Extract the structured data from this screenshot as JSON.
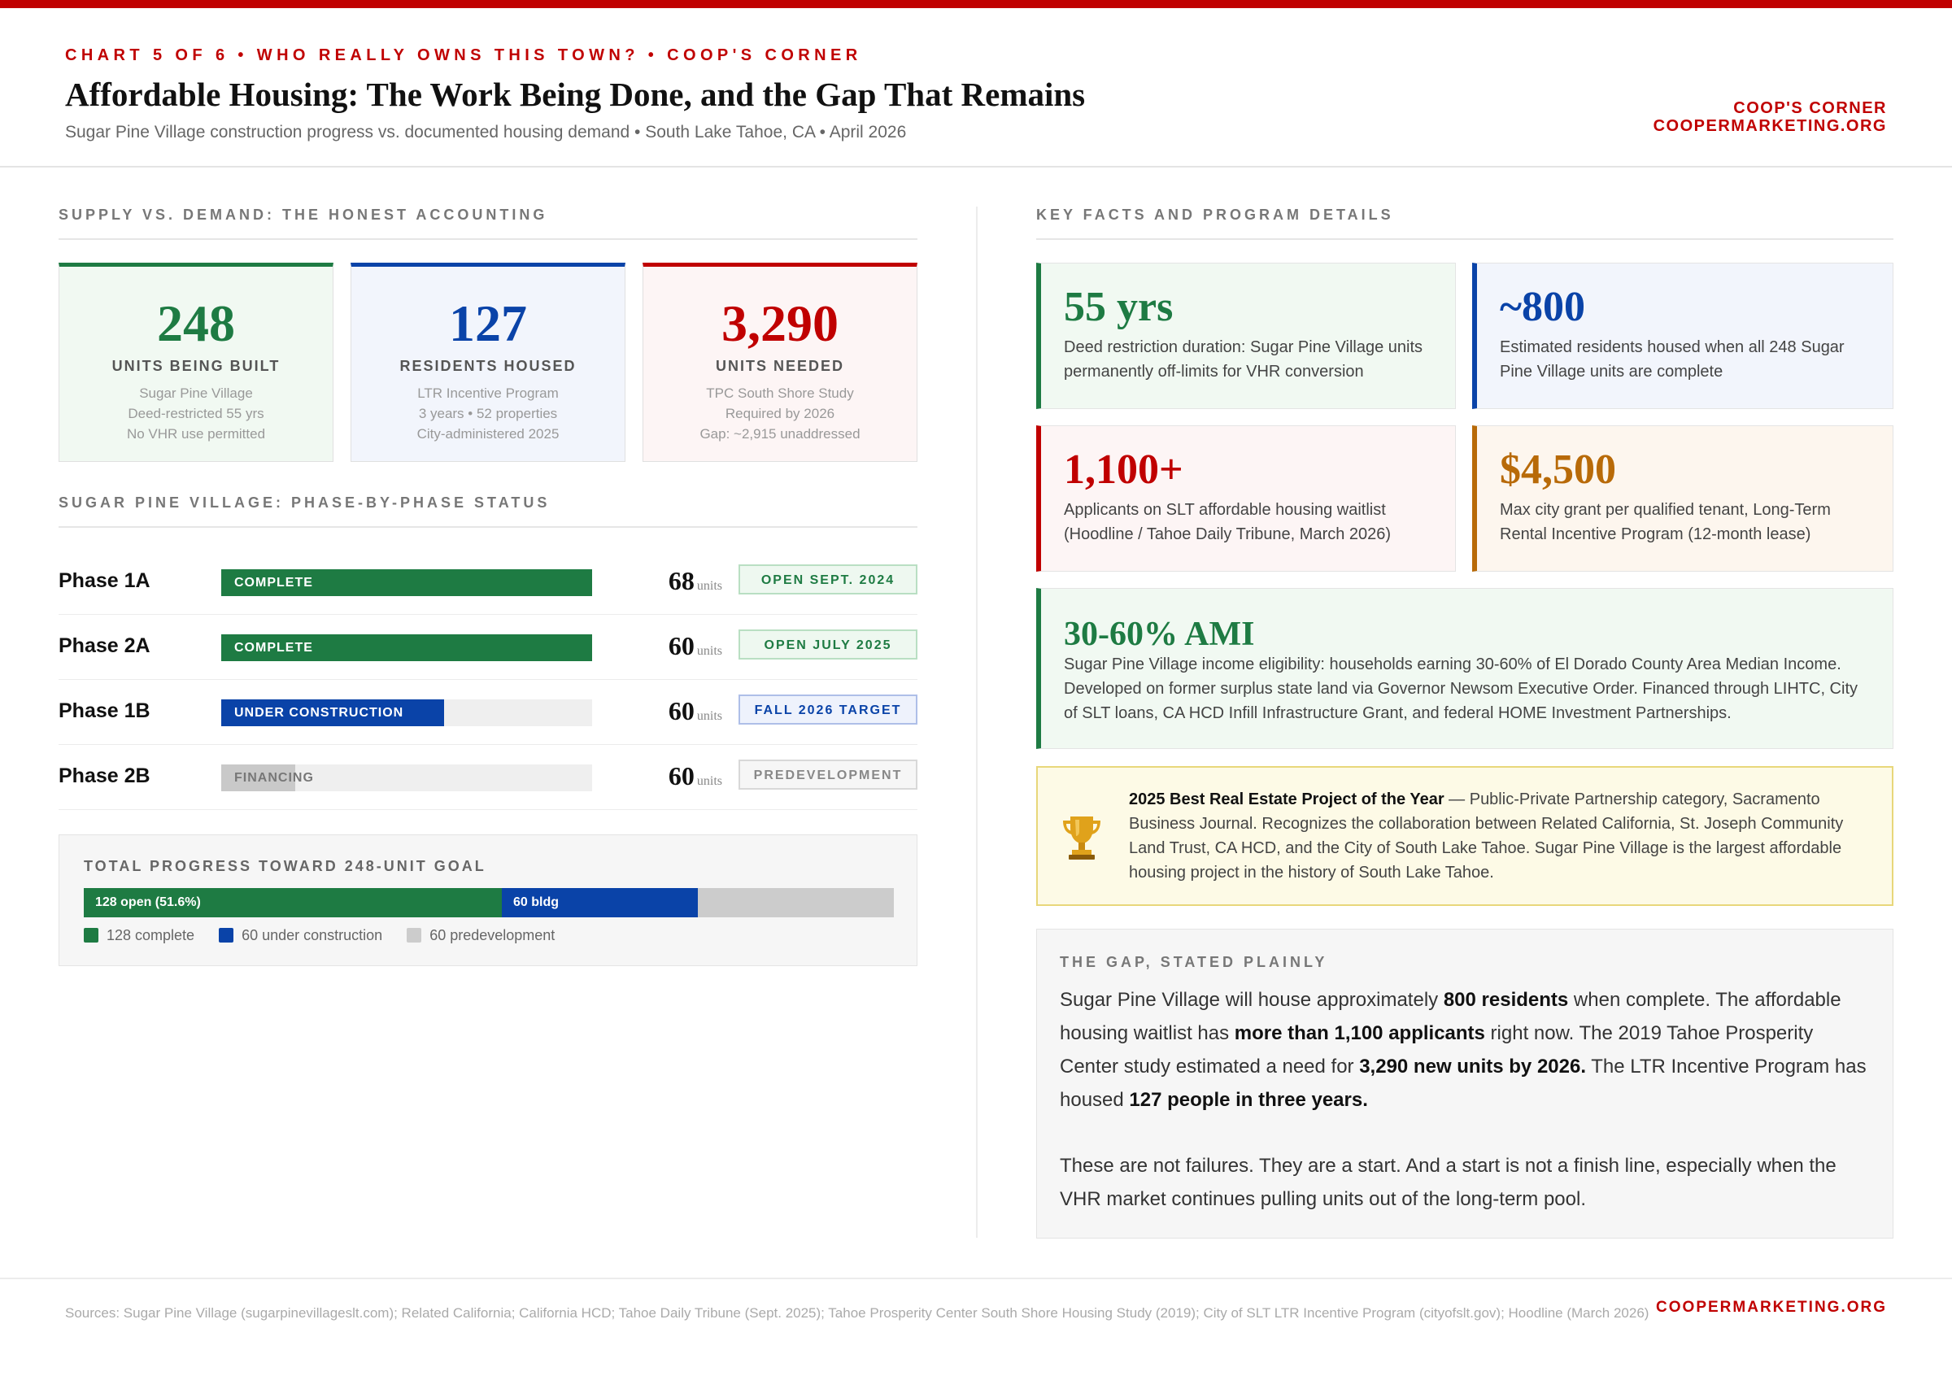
{
  "header": {
    "kicker": "CHART 5 OF 6  •  WHO REALLY OWNS THIS TOWN?  •  COOP'S CORNER",
    "title": "Affordable Housing: The Work Being Done, and the Gap That Remains",
    "subtitle": "Sugar Pine Village construction progress vs. documented housing demand • South Lake Tahoe, CA • April 2026",
    "brand_line1": "COOP'S CORNER",
    "brand_line2": "COOPERMARKETING.ORG"
  },
  "left": {
    "supply_heading": "SUPPLY VS. DEMAND: THE HONEST ACCOUNTING",
    "kpis": [
      {
        "value": "248",
        "label": "UNITS BEING BUILT",
        "d1": "Sugar Pine Village",
        "d2": "Deed-restricted 55 yrs",
        "d3": "No VHR use permitted",
        "color": "#1e7b43",
        "bg": "#f1f9f2"
      },
      {
        "value": "127",
        "label": "RESIDENTS HOUSED",
        "d1": "LTR Incentive Program",
        "d2": "3 years • 52 properties",
        "d3": "City-administered 2025",
        "color": "#0a43a8",
        "bg": "#f2f5fc"
      },
      {
        "value": "3,290",
        "label": "UNITS NEEDED",
        "d1": "TPC South Shore Study",
        "d2": "Required by 2026",
        "d3": "Gap: ~2,915 unaddressed",
        "color": "#c00000",
        "bg": "#fdf5f5"
      }
    ],
    "phase_heading": "SUGAR PINE VILLAGE: PHASE-BY-PHASE STATUS",
    "units_word": "units"
  },
  "chart_data": [
    {
      "type": "bar",
      "title": "SUGAR PINE VILLAGE: PHASE-BY-PHASE STATUS",
      "categories": [
        "Phase 1A",
        "Phase 2A",
        "Phase 1B",
        "Phase 2B"
      ],
      "series": [
        {
          "values": [
            1.0,
            1.0,
            0.6,
            0.2
          ]
        }
      ],
      "status_labels": [
        "COMPLETE",
        "COMPLETE",
        "UNDER CONSTRUCTION",
        "FINANCING"
      ],
      "units": [
        68,
        60,
        60,
        60
      ],
      "badges": [
        "OPEN SEPT. 2024",
        "OPEN JULY 2025",
        "FALL 2026 TARGET",
        "PREDEVELOPMENT"
      ],
      "colors": [
        "#1e7b43",
        "#1e7b43",
        "#0a43a8",
        "#c9c9c9"
      ],
      "status_text_colors": [
        "#ffffff",
        "#ffffff",
        "#ffffff",
        "#777777"
      ],
      "badge_styles": [
        {
          "fg": "#1e7b43",
          "bg": "#eef8f0",
          "border": "#b9dfc3"
        },
        {
          "fg": "#1e7b43",
          "bg": "#eef8f0",
          "border": "#b9dfc3"
        },
        {
          "fg": "#0a43a8",
          "bg": "#eef2fc",
          "border": "#aebfe8"
        },
        {
          "fg": "#888888",
          "bg": "#f6f6f6",
          "border": "#d8d8d8"
        }
      ]
    },
    {
      "type": "bar",
      "title": "TOTAL PROGRESS TOWARD 248-UNIT GOAL",
      "total": 248,
      "series": [
        {
          "name": "128 complete",
          "value": 128,
          "bar_label": "128 open (51.6%)",
          "color": "#1e7b43"
        },
        {
          "name": "60 under construction",
          "value": 60,
          "bar_label": "60 bldg",
          "color": "#0a43a8"
        },
        {
          "name": "60 predevelopment",
          "value": 60,
          "bar_label": "",
          "color": "#cccccc"
        }
      ]
    }
  ],
  "right": {
    "facts_heading": "KEY FACTS AND PROGRAM DETAILS",
    "facts": [
      {
        "value": "55 yrs",
        "text": "Deed restriction duration: Sugar Pine Village units permanently off-limits for VHR conversion",
        "color": "#1e7b43",
        "bg": "#f1f9f2"
      },
      {
        "value": "~800",
        "text": "Estimated residents housed when all 248 Sugar Pine Village units are complete",
        "color": "#0a43a8",
        "bg": "#f2f5fc"
      },
      {
        "value": "1,100+",
        "text": "Applicants on SLT affordable housing waitlist (Hoodline / Tahoe Daily Tribune, March 2026)",
        "color": "#c00000",
        "bg": "#fdf5f5"
      },
      {
        "value": "$4,500",
        "text": "Max city grant per qualified tenant, Long-Term Rental Incentive Program (12-month lease)",
        "color": "#b86a08",
        "bg": "#fdf6ee"
      },
      {
        "value": "30-60% AMI",
        "text": "Sugar Pine Village income eligibility: households earning 30-60% of El Dorado County Area Median Income. Developed on former surplus state land via Governor Newsom Executive Order. Financed through LIHTC, City of SLT loans, CA HCD Infill Infrastructure Grant, and federal HOME Investment Partnerships.",
        "color": "#1e7b43",
        "bg": "#f1f9f2"
      }
    ],
    "award": {
      "title": "2025 Best Real Estate Project of the Year",
      "text": " — Public-Private Partnership category, Sacramento Business Journal. Recognizes the collaboration between Related California, St. Joseph Community Land Trust, CA HCD, and the City of South Lake Tahoe. Sugar Pine Village is the largest affordable housing project in the history of South Lake Tahoe.",
      "icon": "trophy-icon"
    },
    "gap": {
      "heading": "THE GAP, STATED PLAINLY",
      "p1_a": "Sugar Pine Village will house approximately ",
      "p1_b": "800 residents",
      "p1_c": " when complete. The affordable housing waitlist has ",
      "p1_d": "more than 1,100 applicants",
      "p1_e": " right now. The 2019 Tahoe Prosperity Center study estimated a need for ",
      "p1_f": "3,290 new units by 2026.",
      "p1_g": " The LTR Incentive Program has housed ",
      "p1_h": "127 people in three years.",
      "p2": "These are not failures. They are a start. And a start is not a finish line, especially when the VHR market continues pulling units out of the long-term pool."
    }
  },
  "footer": {
    "sources": "Sources: Sugar Pine Village (sugarpinevillageslt.com); Related California; California HCD; Tahoe Daily Tribune (Sept. 2025); Tahoe Prosperity Center South Shore Housing Study (2019); City of SLT LTR Incentive Program (cityofslt.gov); Hoodline (March 2026)",
    "brand": "COOPERMARKETING.ORG"
  }
}
